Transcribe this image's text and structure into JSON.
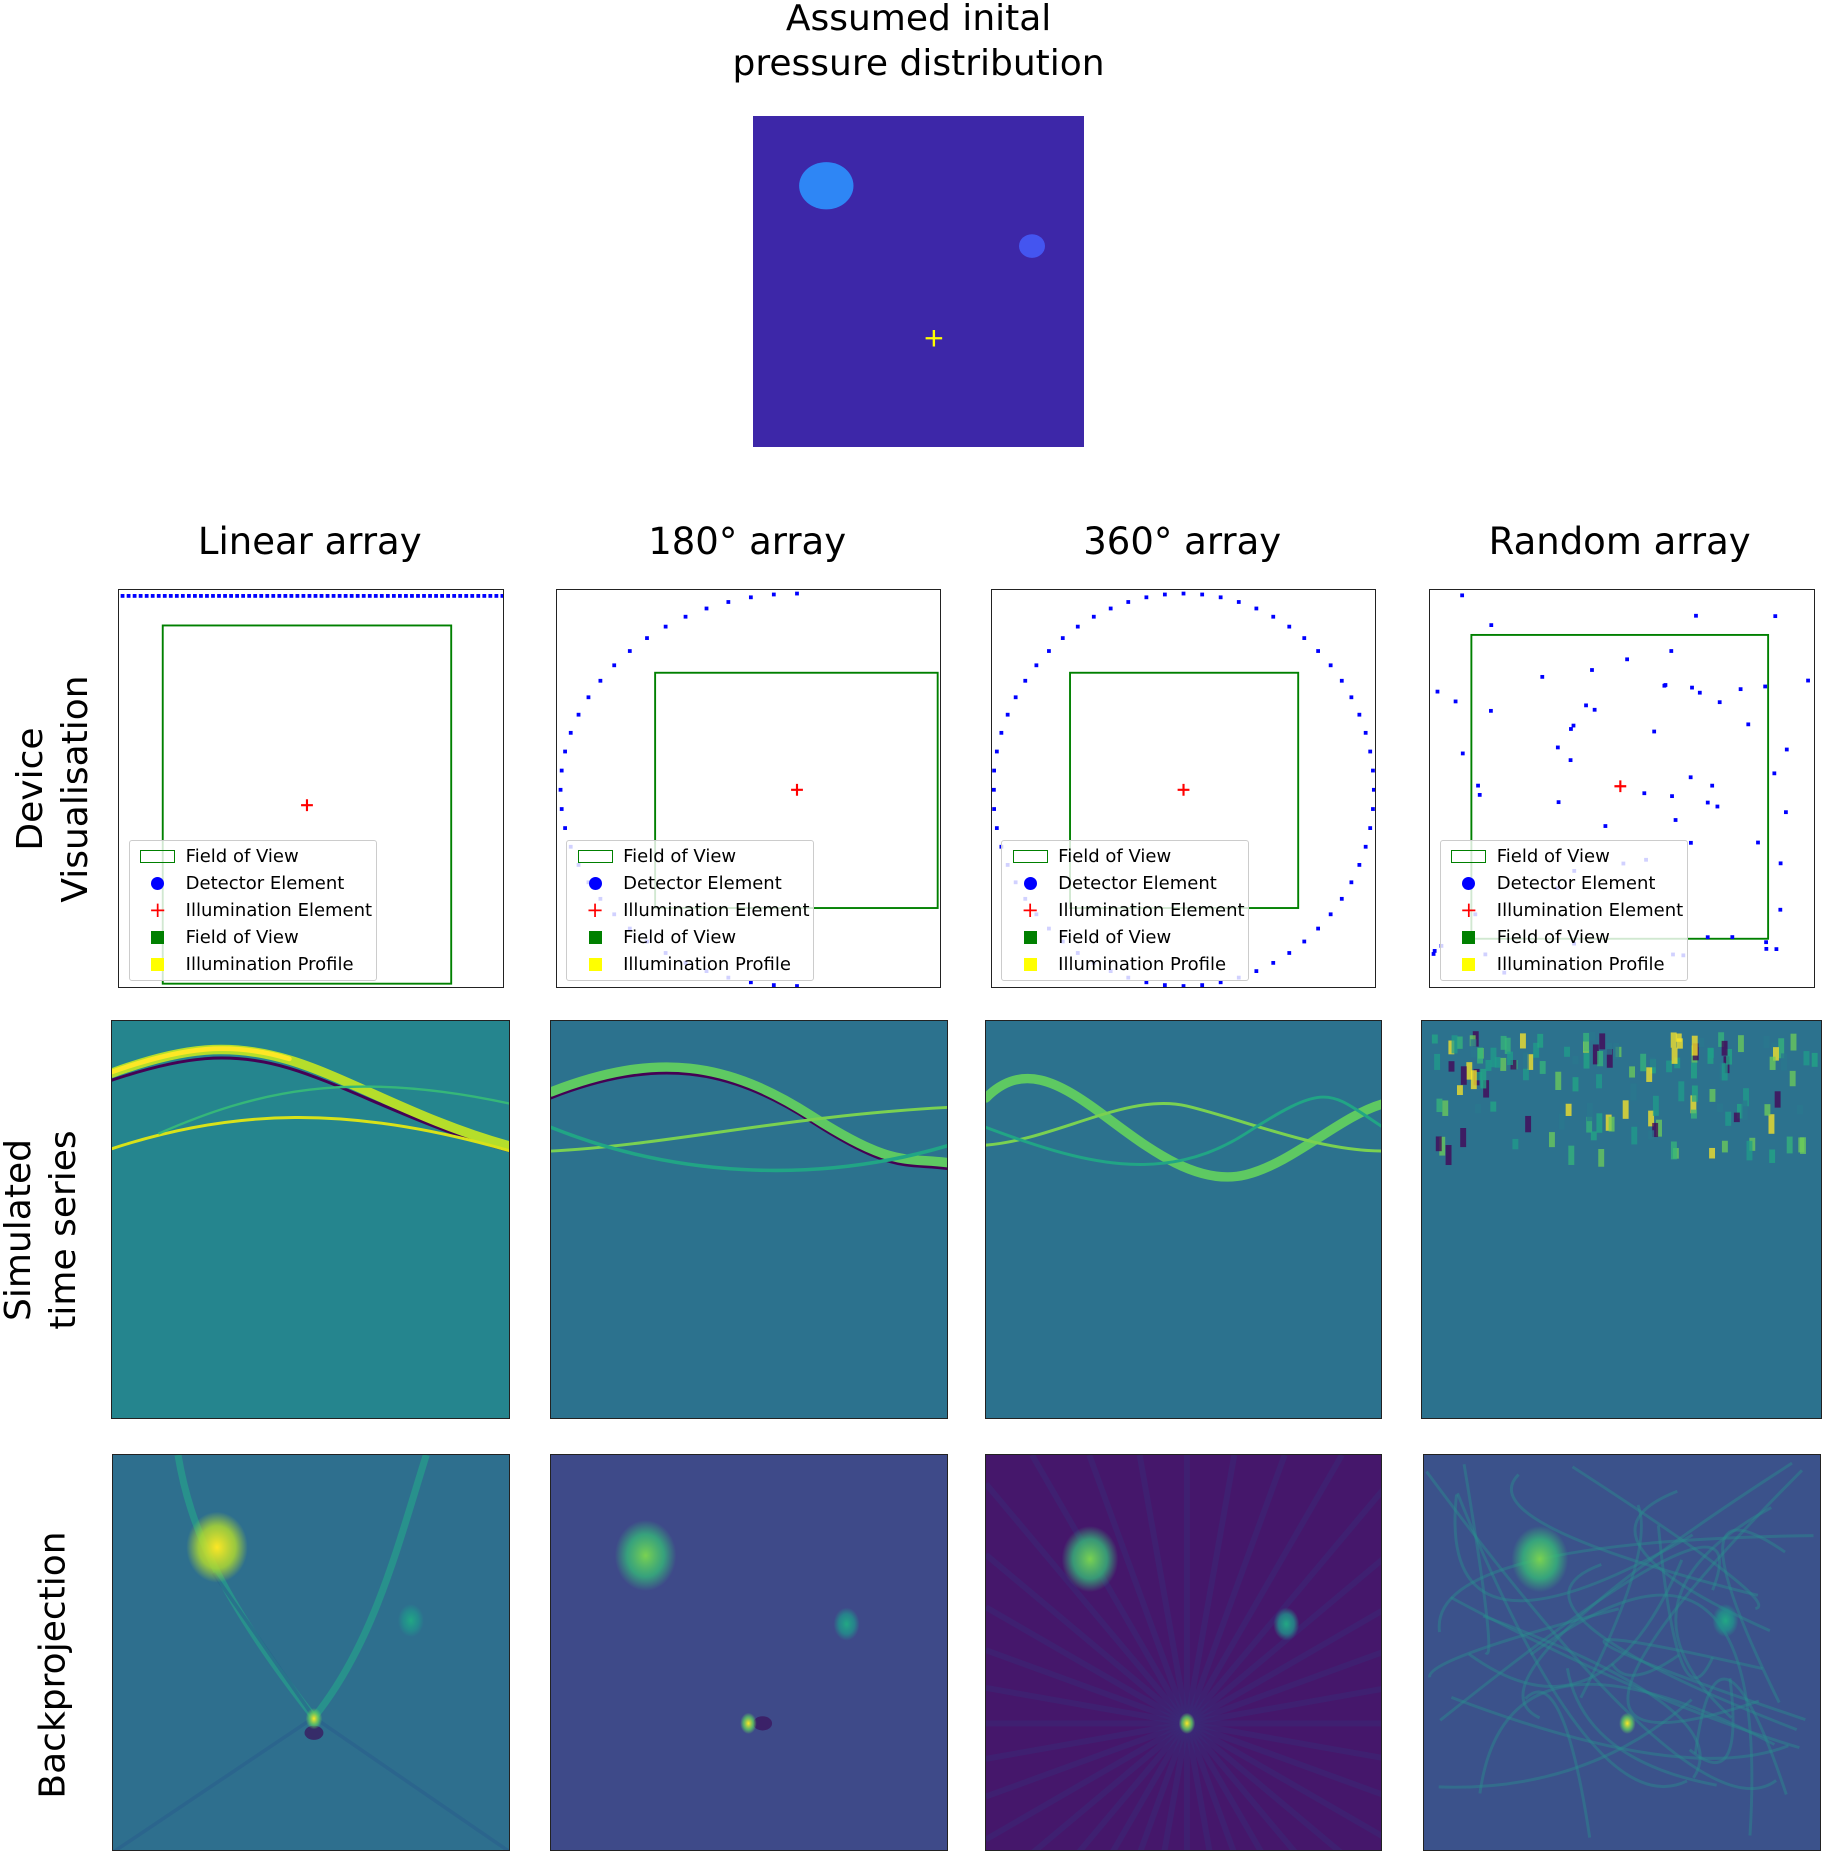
{
  "figure": {
    "title_line1": "Assumed inital",
    "title_line2": "pressure distribution",
    "columns": [
      "Linear array",
      "180° array",
      "360° array",
      "Random array"
    ],
    "rows": [
      {
        "line1": "Device",
        "line2": "Visualisation"
      },
      {
        "line1": "Simulated",
        "line2": "time series"
      },
      {
        "line1": "Backprojection",
        "line2": ""
      }
    ],
    "legend": [
      {
        "label": "Field of View",
        "symbol": "outline-rect",
        "color": "#008000"
      },
      {
        "label": "Detector Element",
        "symbol": "dot",
        "color": "#0000ff"
      },
      {
        "label": "Illumination Element",
        "symbol": "plus",
        "color": "#ff0000"
      },
      {
        "label": "Field of View",
        "symbol": "square",
        "color": "#008000"
      },
      {
        "label": "Illumination Profile",
        "symbol": "square",
        "color": "#ffff00"
      }
    ]
  },
  "colors": {
    "pressure_background": "#3d27a8",
    "large_absorber": "#2e86f5",
    "small_absorber": "#4455f0",
    "point_absorber": "#ffff00",
    "fov": "#008000",
    "detector": "#0000ff",
    "illumination": "#ff0000",
    "timeseries_bg": [
      "#25858e",
      "#2c728e",
      "#2c728e",
      "#2c728e"
    ],
    "recon_bg": [
      "#2e6f8e",
      "#3e4a89",
      "#45176b",
      "#3b528b"
    ]
  },
  "chart_data": [
    {
      "type": "heatmap",
      "title": "Assumed inital pressure distribution",
      "colormap": "viridis",
      "axes": "off"
    },
    {
      "type": "scatter",
      "panel": "device",
      "geometries": [
        "linear",
        "semicircle",
        "circle",
        "random"
      ],
      "detector_counts": [
        64,
        32,
        64,
        64
      ],
      "legend": "lower-left",
      "axes": "off"
    },
    {
      "type": "heatmap",
      "panel": "time series",
      "colormap": "viridis",
      "axes": "off"
    },
    {
      "type": "heatmap",
      "panel": "backprojection",
      "colormap": "viridis",
      "axes": "off"
    }
  ]
}
